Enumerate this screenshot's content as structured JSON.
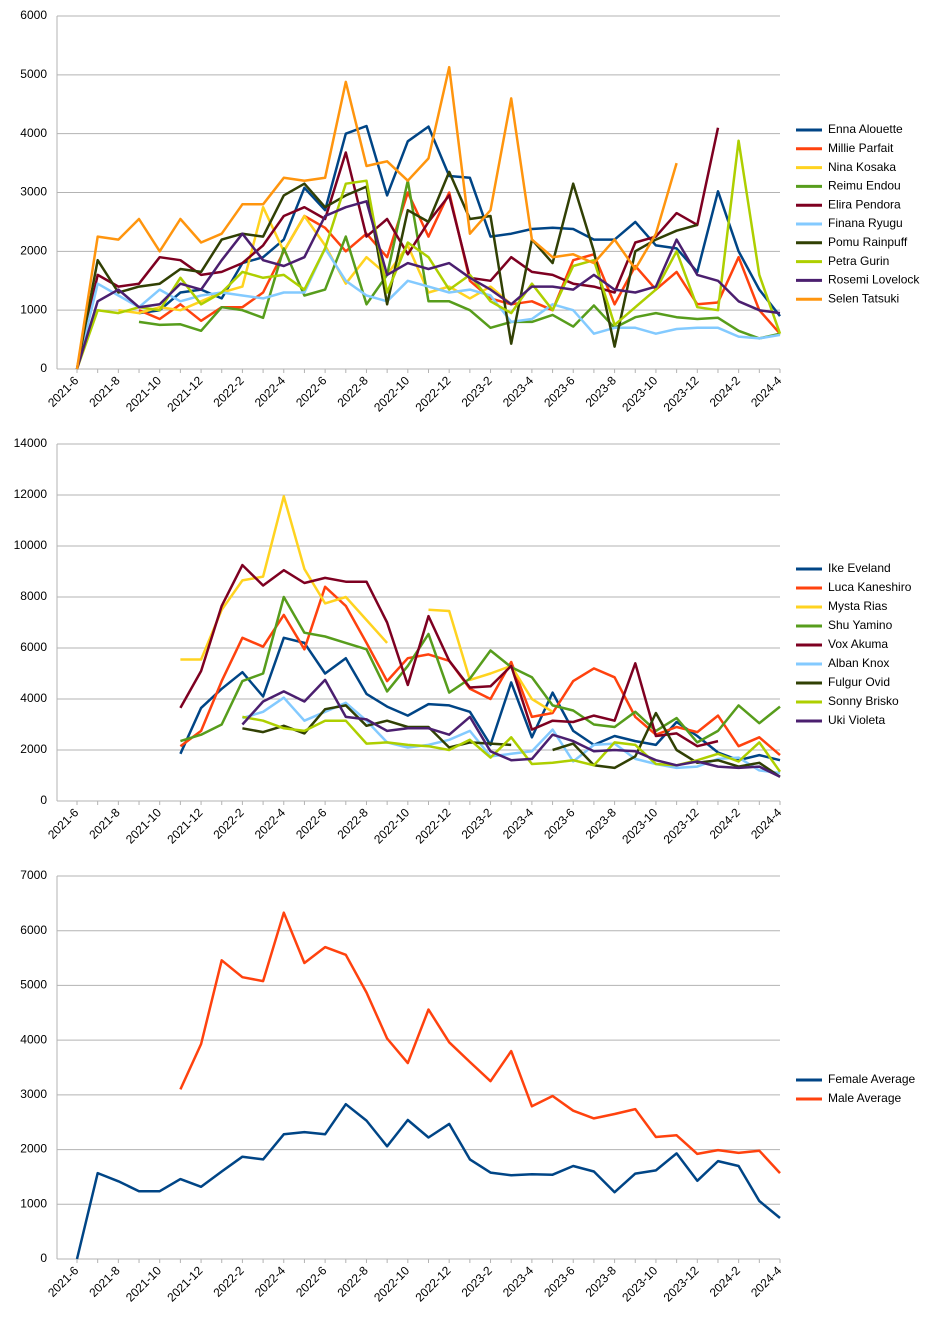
{
  "chart_data": [
    {
      "type": "line",
      "grid": true,
      "categories": [
        "2021-6",
        null,
        "2021-8",
        null,
        "2021-10",
        null,
        "2021-12",
        null,
        "2022-2",
        null,
        "2022-4",
        null,
        "2022-6",
        null,
        "2022-8",
        null,
        "2022-10",
        null,
        "2022-12",
        null,
        "2023-2",
        null,
        "2023-4",
        null,
        "2023-6",
        null,
        "2023-8",
        null,
        "2023-10",
        null,
        "2023-12",
        null,
        "2024-2",
        null,
        "2024-4"
      ],
      "ylim": [
        0,
        6000
      ],
      "yticks": [
        0,
        1000,
        2000,
        3000,
        4000,
        5000,
        6000
      ],
      "series": [
        {
          "name": "Enna Alouette",
          "color": "#004586",
          "values": [
            null,
            null,
            null,
            950,
            1000,
            1300,
            1350,
            1200,
            1800,
            1900,
            2200,
            3080,
            2700,
            4000,
            4130,
            2950,
            3870,
            4120,
            3280,
            3250,
            2250,
            2300,
            2380,
            2400,
            2380,
            2200,
            2200,
            2500,
            2100,
            2050,
            1650,
            3020,
            2000,
            1350,
            900
          ]
        },
        {
          "name": "Millie Parfait",
          "color": "#ff420e",
          "values": [
            null,
            null,
            null,
            1000,
            850,
            1100,
            820,
            1050,
            1050,
            1300,
            2000,
            2600,
            2400,
            2000,
            2300,
            1900,
            3000,
            2250,
            3000,
            1500,
            1200,
            1100,
            1150,
            1000,
            1850,
            1950,
            1100,
            1750,
            1350,
            1650,
            1100,
            1130,
            1900,
            1000,
            600
          ]
        },
        {
          "name": "Nina Kosaka",
          "color": "#ffd320",
          "values": [
            null,
            null,
            1000,
            950,
            1050,
            1000,
            1150,
            1300,
            1400,
            2750,
            2000,
            2600,
            2100,
            1450,
            1900,
            1600,
            2100,
            1300,
            1400,
            1200,
            1400,
            1100,
            null,
            null,
            null,
            null,
            null,
            null,
            null,
            null,
            null,
            null,
            null,
            null,
            null
          ]
        },
        {
          "name": "Reimu Endou",
          "color": "#579d1c",
          "values": [
            null,
            null,
            null,
            800,
            750,
            760,
            650,
            1050,
            1000,
            870,
            2050,
            1250,
            1350,
            2250,
            1100,
            1600,
            3200,
            1150,
            1150,
            1000,
            700,
            800,
            800,
            920,
            720,
            1080,
            700,
            880,
            950,
            880,
            850,
            870,
            650,
            520,
            600
          ]
        },
        {
          "name": "Elira Pendora",
          "color": "#7e0021",
          "values": [
            0,
            1600,
            1400,
            1450,
            1900,
            1850,
            1600,
            1650,
            1800,
            2100,
            2600,
            2750,
            2550,
            3680,
            2250,
            2550,
            1950,
            2500,
            2950,
            1550,
            1500,
            1900,
            1650,
            1600,
            1450,
            1400,
            1300,
            2150,
            2250,
            2650,
            2450,
            4100,
            null,
            null,
            null
          ]
        },
        {
          "name": "Finana Ryugu",
          "color": "#83caff",
          "values": [
            0,
            1450,
            1250,
            1050,
            1350,
            1150,
            1250,
            1300,
            1250,
            1200,
            1300,
            1300,
            2050,
            1500,
            1250,
            1150,
            1500,
            1400,
            1300,
            1350,
            1250,
            800,
            850,
            1100,
            1000,
            600,
            700,
            700,
            600,
            680,
            700,
            700,
            550,
            520,
            580
          ]
        },
        {
          "name": "Pomu Rainpuff",
          "color": "#314004",
          "values": [
            0,
            1850,
            1300,
            1400,
            1450,
            1700,
            1650,
            2200,
            2300,
            2250,
            2950,
            3150,
            2750,
            2950,
            3100,
            1100,
            2700,
            2500,
            3350,
            2550,
            2600,
            430,
            2200,
            1800,
            3150,
            2000,
            380,
            2000,
            2200,
            2350,
            2450,
            null,
            null,
            null,
            null
          ]
        },
        {
          "name": "Petra Gurin",
          "color": "#aecf00",
          "values": [
            0,
            1000,
            950,
            1050,
            1000,
            1550,
            1100,
            1300,
            1650,
            1550,
            1600,
            1350,
            2050,
            3150,
            3200,
            1300,
            2150,
            1900,
            1350,
            1600,
            1150,
            950,
            1450,
            1000,
            1750,
            1850,
            750,
            1050,
            1350,
            2000,
            1050,
            1000,
            3880,
            1600,
            600
          ]
        },
        {
          "name": "Rosemi Lovelock",
          "color": "#4b1f6f",
          "values": [
            0,
            1150,
            1350,
            1050,
            1100,
            1450,
            1350,
            1850,
            2300,
            1850,
            1750,
            1900,
            2600,
            2750,
            2850,
            1600,
            1800,
            1700,
            1800,
            1550,
            1350,
            1100,
            1400,
            1400,
            1350,
            1600,
            1350,
            1300,
            1400,
            2200,
            1600,
            1500,
            1150,
            1000,
            950
          ]
        },
        {
          "name": "Selen Tatsuki",
          "color": "#ff950e",
          "values": [
            0,
            2250,
            2200,
            2550,
            2000,
            2550,
            2150,
            2300,
            2800,
            2800,
            3250,
            3200,
            3250,
            4880,
            3450,
            3530,
            3200,
            3580,
            5130,
            2300,
            2700,
            4600,
            2200,
            1900,
            1950,
            1800,
            2200,
            1700,
            2300,
            3500,
            null,
            null,
            null,
            null,
            null
          ]
        }
      ]
    },
    {
      "type": "line",
      "grid": true,
      "categories": [
        "2021-6",
        null,
        "2021-8",
        null,
        "2021-10",
        null,
        "2021-12",
        null,
        "2022-2",
        null,
        "2022-4",
        null,
        "2022-6",
        null,
        "2022-8",
        null,
        "2022-10",
        null,
        "2022-12",
        null,
        "2023-2",
        null,
        "2023-4",
        null,
        "2023-6",
        null,
        "2023-8",
        null,
        "2023-10",
        null,
        "2023-12",
        null,
        "2024-2",
        null,
        "2024-4"
      ],
      "ylim": [
        0,
        14000
      ],
      "yticks": [
        0,
        2000,
        4000,
        6000,
        8000,
        10000,
        12000,
        14000
      ],
      "series": [
        {
          "name": "Ike Eveland",
          "color": "#004586",
          "values": [
            null,
            null,
            null,
            null,
            null,
            1850,
            3650,
            4400,
            5050,
            4100,
            6400,
            6200,
            5000,
            5600,
            4200,
            3700,
            3350,
            3800,
            3750,
            3500,
            2200,
            4650,
            2500,
            4250,
            2750,
            2200,
            2550,
            2350,
            2200,
            3100,
            2550,
            1900,
            1600,
            1800,
            1600
          ]
        },
        {
          "name": "Luca Kaneshiro",
          "color": "#ff420e",
          "values": [
            null,
            null,
            null,
            null,
            null,
            2150,
            2750,
            4700,
            6400,
            6050,
            7300,
            5950,
            8400,
            7650,
            6200,
            4700,
            5600,
            5750,
            5500,
            4400,
            4000,
            5450,
            3300,
            3450,
            4700,
            5200,
            4850,
            3300,
            2600,
            2900,
            2700,
            3350,
            2150,
            2500,
            1800
          ]
        },
        {
          "name": "Mysta Rias",
          "color": "#ffd320",
          "values": [
            null,
            null,
            null,
            null,
            null,
            5550,
            5550,
            7500,
            8650,
            8800,
            11950,
            9100,
            7750,
            8000,
            7100,
            6200,
            null,
            7500,
            7450,
            4750,
            5000,
            5300,
            4000,
            3500,
            null,
            null,
            null,
            null,
            null,
            null,
            null,
            null,
            null,
            null,
            null
          ]
        },
        {
          "name": "Shu Yamino",
          "color": "#579d1c",
          "values": [
            null,
            null,
            null,
            null,
            null,
            2350,
            2600,
            3000,
            4700,
            5000,
            8000,
            6600,
            6450,
            6200,
            5950,
            4300,
            5300,
            6550,
            4250,
            4800,
            5900,
            5250,
            4850,
            3750,
            3550,
            3000,
            2900,
            3500,
            2750,
            3250,
            2300,
            2750,
            3750,
            3050,
            3700
          ]
        },
        {
          "name": "Vox Akuma",
          "color": "#7e0021",
          "values": [
            null,
            null,
            null,
            null,
            null,
            3650,
            5100,
            7650,
            9250,
            8450,
            9050,
            8550,
            8750,
            8600,
            8600,
            7000,
            4550,
            7250,
            5500,
            4450,
            4500,
            5300,
            2800,
            3150,
            3100,
            3350,
            3150,
            5400,
            2550,
            2650,
            2150,
            2350,
            null,
            null,
            null
          ]
        },
        {
          "name": "Alban Knox",
          "color": "#83caff",
          "values": [
            null,
            null,
            null,
            null,
            null,
            null,
            null,
            null,
            3250,
            3500,
            4050,
            3150,
            3500,
            3850,
            3150,
            2300,
            2100,
            2200,
            2400,
            2750,
            1750,
            1850,
            1950,
            2800,
            1550,
            2200,
            2250,
            1650,
            1450,
            1300,
            1350,
            1650,
            1700,
            1200,
            1100
          ]
        },
        {
          "name": "Fulgur Ovid",
          "color": "#314004",
          "values": [
            null,
            null,
            null,
            null,
            null,
            null,
            null,
            null,
            2850,
            2700,
            2950,
            2650,
            3600,
            3750,
            2950,
            3150,
            2900,
            2900,
            2100,
            2300,
            2250,
            2200,
            null,
            2000,
            2250,
            1400,
            1300,
            1750,
            3450,
            2000,
            1500,
            1600,
            1350,
            1500,
            950
          ]
        },
        {
          "name": "Sonny Brisko",
          "color": "#aecf00",
          "values": [
            null,
            null,
            null,
            null,
            null,
            null,
            null,
            null,
            3300,
            3150,
            2850,
            2750,
            3150,
            3150,
            2250,
            2300,
            2200,
            2150,
            2000,
            2400,
            1700,
            2500,
            1450,
            1500,
            1600,
            1400,
            2300,
            2200,
            1450,
            1400,
            1600,
            1850,
            1550,
            2300,
            1150
          ]
        },
        {
          "name": "Uki Violeta",
          "color": "#4b1f6f",
          "values": [
            null,
            null,
            null,
            null,
            null,
            null,
            null,
            null,
            3000,
            3900,
            4300,
            3900,
            4750,
            3300,
            3200,
            2750,
            2850,
            2850,
            2600,
            3300,
            1950,
            1600,
            1650,
            2600,
            2350,
            1950,
            2000,
            1950,
            1600,
            1400,
            1550,
            1350,
            1300,
            1350,
            950
          ]
        }
      ]
    },
    {
      "type": "line",
      "grid": true,
      "categories": [
        "2021-6",
        null,
        "2021-8",
        null,
        "2021-10",
        null,
        "2021-12",
        null,
        "2022-2",
        null,
        "2022-4",
        null,
        "2022-6",
        null,
        "2022-8",
        null,
        "2022-10",
        null,
        "2022-12",
        null,
        "2023-2",
        null,
        "2023-4",
        null,
        "2023-6",
        null,
        "2023-8",
        null,
        "2023-10",
        null,
        "2023-12",
        null,
        "2024-2",
        null,
        "2024-4"
      ],
      "ylim": [
        0,
        7000
      ],
      "yticks": [
        0,
        1000,
        2000,
        3000,
        4000,
        5000,
        6000,
        7000
      ],
      "series": [
        {
          "name": "Female Average",
          "color": "#004586",
          "values": [
            0,
            1570,
            1420,
            1240,
            1240,
            1460,
            1320,
            1600,
            1870,
            1820,
            2280,
            2320,
            2280,
            2830,
            2530,
            2060,
            2540,
            2220,
            2470,
            1820,
            1580,
            1530,
            1550,
            1540,
            1700,
            1600,
            1220,
            1560,
            1620,
            1930,
            1430,
            1790,
            1700,
            1060,
            750
          ]
        },
        {
          "name": "Male Average",
          "color": "#ff420e",
          "values": [
            null,
            null,
            null,
            null,
            null,
            3100,
            3930,
            5460,
            5150,
            5080,
            6330,
            5410,
            5700,
            5560,
            4870,
            4030,
            3580,
            4560,
            3960,
            3600,
            3250,
            3800,
            2790,
            2980,
            2710,
            2570,
            2650,
            2740,
            2230,
            2260,
            1920,
            1990,
            1940,
            1980,
            1570
          ]
        }
      ]
    }
  ]
}
